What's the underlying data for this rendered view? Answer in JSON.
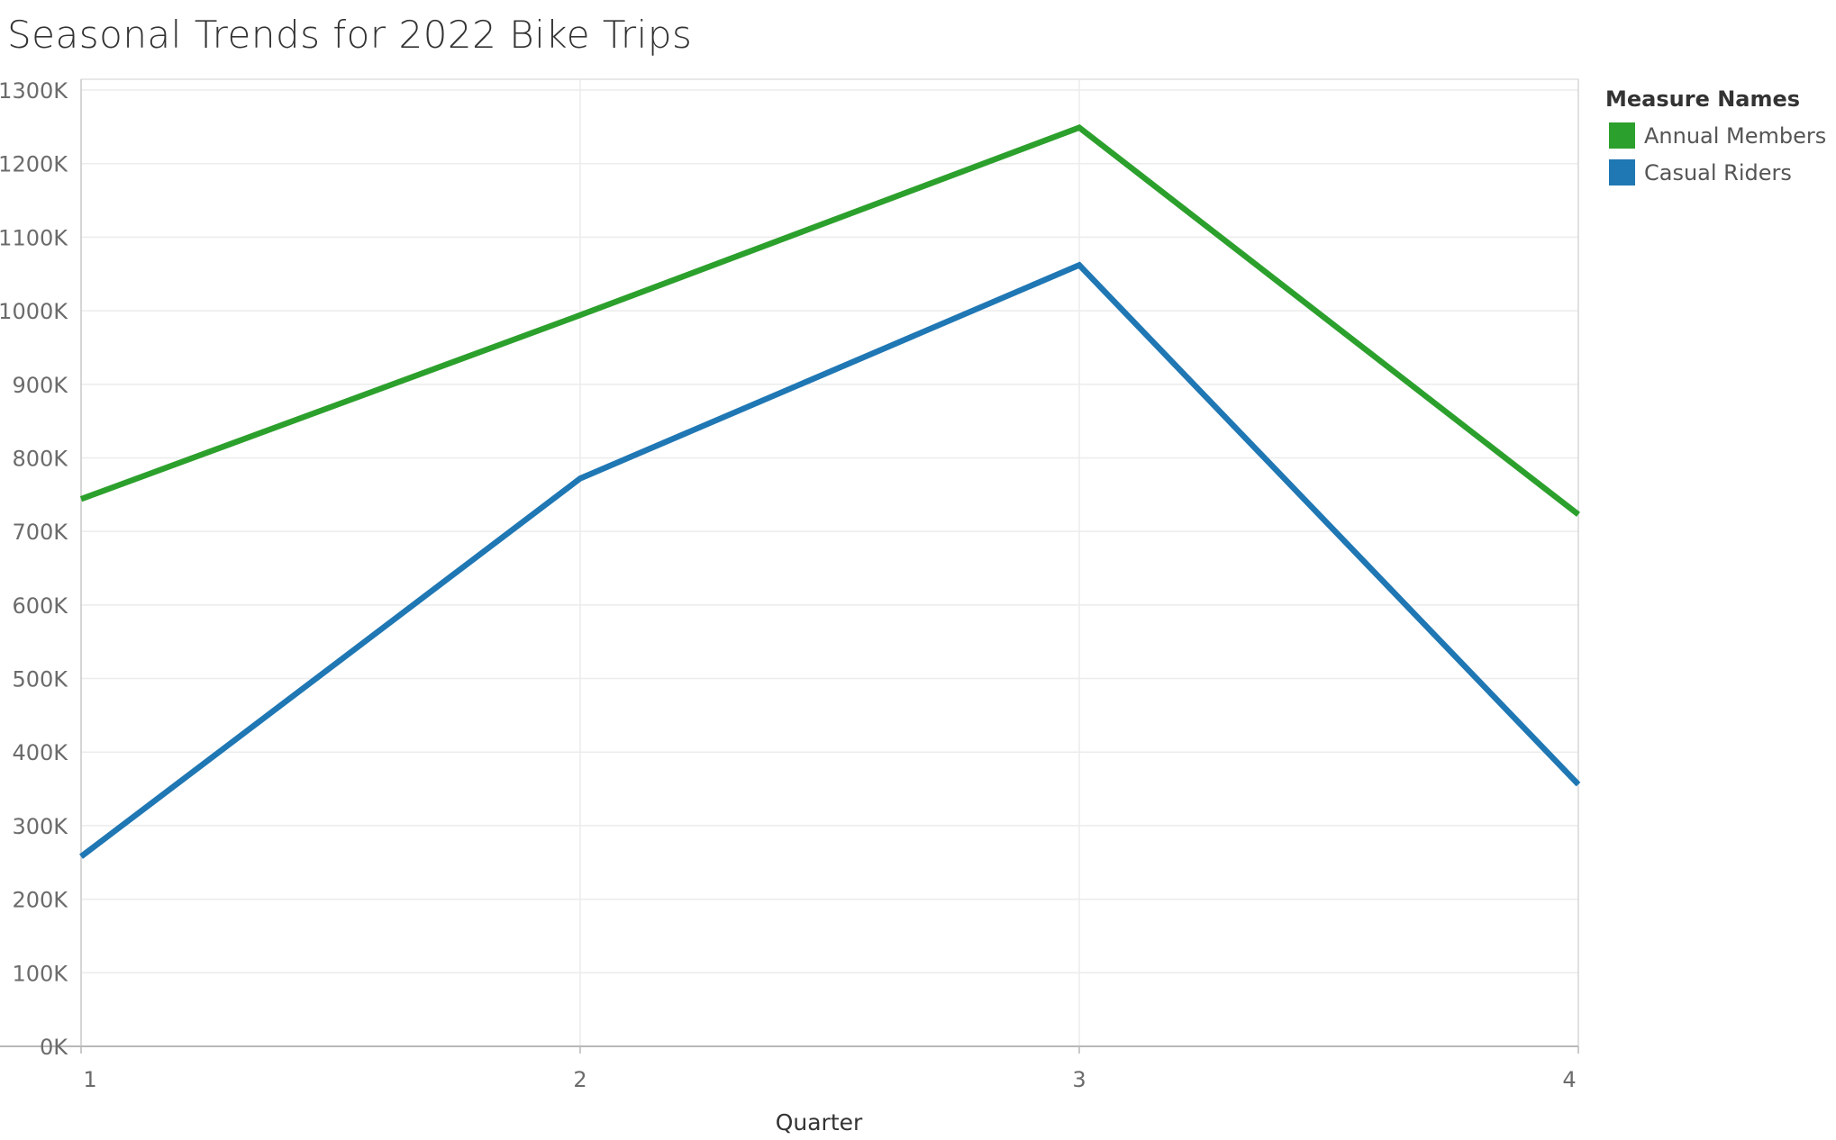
{
  "chart_data": {
    "type": "line",
    "title": "Seasonal Trends for 2022 Bike Trips",
    "xlabel": "Quarter",
    "ylabel": "",
    "categories": [
      "1",
      "2",
      "3",
      "4"
    ],
    "y_ticks": [
      "0K",
      "100K",
      "200K",
      "300K",
      "400K",
      "500K",
      "600K",
      "700K",
      "800K",
      "900K",
      "1000K",
      "1100K",
      "1200K",
      "1300K"
    ],
    "ylim": [
      0,
      1300000
    ],
    "grid": true,
    "legend_position": "right",
    "legend_title": "Measure Names",
    "series": [
      {
        "name": "Annual Members",
        "color": "#2ca02c",
        "values": [
          744000,
          994000,
          1249000,
          723000
        ]
      },
      {
        "name": "Casual Riders",
        "color": "#1f77b4",
        "values": [
          258000,
          772000,
          1062000,
          356000
        ]
      }
    ]
  }
}
